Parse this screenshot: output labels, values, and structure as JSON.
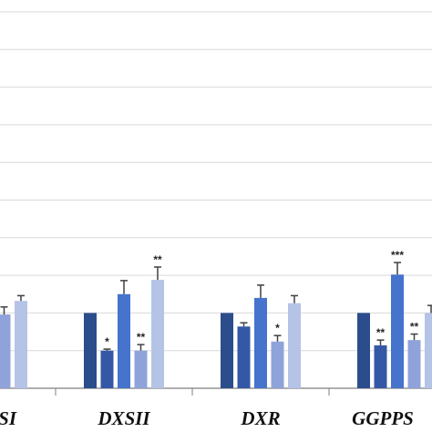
{
  "chart_data": {
    "type": "bar",
    "categories": [
      "SI",
      "DXSII",
      "DXR",
      "GGPPS"
    ],
    "series": [
      {
        "color": "#2c4d8c",
        "values": [
          null,
          1.0,
          1.0,
          1.0
        ],
        "errors": [
          null,
          0,
          0,
          0
        ],
        "significance": [
          null,
          null,
          null,
          null
        ]
      },
      {
        "color": "#3558a6",
        "values": [
          null,
          0.5,
          0.82,
          0.57
        ],
        "errors": [
          null,
          0.02,
          0.05,
          0.07
        ],
        "significance": [
          null,
          "*",
          null,
          "**"
        ]
      },
      {
        "color": "#4673cc",
        "values": [
          null,
          1.25,
          1.2,
          1.51
        ],
        "errors": [
          null,
          0.18,
          0.17,
          0.16
        ],
        "significance": [
          null,
          null,
          null,
          "***"
        ]
      },
      {
        "color": "#8fa3da",
        "values": [
          0.98,
          0.5,
          0.62,
          0.64
        ],
        "errors": [
          0.1,
          0.08,
          0.08,
          0.08
        ],
        "significance": [
          null,
          "**",
          "*",
          "**"
        ]
      },
      {
        "color": "#b5c3e7",
        "values": [
          1.16,
          1.44,
          1.13,
          1.0
        ],
        "errors": [
          0.07,
          0.17,
          0.1,
          0.1
        ],
        "significance": [
          null,
          "**",
          null,
          null
        ]
      }
    ],
    "ylim": [
      0,
      5
    ],
    "yticks": [
      0,
      0.5,
      1,
      1.5,
      2,
      2.5,
      3,
      3.5,
      4,
      4.5,
      5
    ],
    "grid": true
  }
}
